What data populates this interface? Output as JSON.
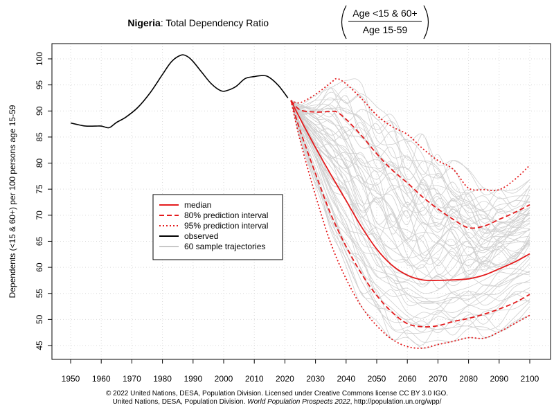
{
  "chart_data": {
    "type": "line",
    "title": {
      "country": "Nigeria",
      "text": ": Total Dependency Ratio",
      "fraction_numerator": "Age <15 & 60+",
      "fraction_denominator": "Age 15-59"
    },
    "ylabel": "Dependents (<15 & 60+) per 100 persons age 15-59",
    "xlabel": "",
    "xlim": [
      1950,
      2100
    ],
    "ylim": [
      44,
      102
    ],
    "x_ticks": [
      1950,
      1960,
      1970,
      1980,
      1990,
      2000,
      2010,
      2020,
      2030,
      2040,
      2050,
      2060,
      2070,
      2080,
      2090,
      2100
    ],
    "y_ticks": [
      45,
      50,
      55,
      60,
      65,
      70,
      75,
      80,
      85,
      90,
      95,
      100
    ],
    "grid": true,
    "legend_position": "center-left",
    "legend": [
      {
        "label": "median",
        "color": "#e41a1c",
        "style": "solid"
      },
      {
        "label": "80% prediction interval",
        "color": "#e41a1c",
        "style": "dashed"
      },
      {
        "label": "95% prediction interval",
        "color": "#e41a1c",
        "style": "dotted"
      },
      {
        "label": "observed",
        "color": "#000000",
        "style": "solid"
      },
      {
        "label": "60 sample trajectories",
        "color": "#c8c8c8",
        "style": "solid"
      }
    ],
    "series": [
      {
        "name": "observed",
        "color": "#000000",
        "style": "solid",
        "x": [
          1950,
          1953,
          1955,
          1958,
          1960,
          1962,
          1963,
          1965,
          1968,
          1972,
          1976,
          1980,
          1983,
          1986,
          1988,
          1990,
          1993,
          1996,
          1999,
          2001,
          2004,
          2007,
          2010,
          2013,
          2015,
          2018,
          2021
        ],
        "y": [
          87.7,
          87.3,
          87.1,
          87.1,
          87.1,
          86.8,
          86.9,
          87.8,
          88.8,
          90.7,
          93.5,
          97.0,
          99.5,
          100.7,
          100.5,
          99.5,
          97.3,
          95.2,
          93.9,
          93.9,
          94.7,
          96.2,
          96.6,
          96.8,
          96.4,
          94.8,
          92.5
        ]
      },
      {
        "name": "median",
        "color": "#e41a1c",
        "style": "solid",
        "x": [
          2022,
          2025,
          2030,
          2035,
          2040,
          2045,
          2050,
          2055,
          2060,
          2065,
          2070,
          2075,
          2080,
          2085,
          2090,
          2095,
          2100
        ],
        "y": [
          92,
          88.5,
          83,
          77.8,
          72.8,
          67.8,
          63.5,
          60.4,
          58.5,
          57.6,
          57.5,
          57.6,
          57.8,
          58.5,
          59.7,
          61,
          62.6
        ]
      },
      {
        "name": "80% upper",
        "color": "#e41a1c",
        "style": "dashed",
        "x": [
          2022,
          2025,
          2030,
          2035,
          2037,
          2040,
          2045,
          2050,
          2055,
          2060,
          2065,
          2070,
          2075,
          2080,
          2085,
          2090,
          2095,
          2100
        ],
        "y": [
          92,
          90.2,
          89.8,
          89.9,
          89.8,
          88.4,
          85.3,
          81.8,
          78.7,
          76.2,
          73.5,
          71.2,
          69.2,
          67.6,
          67.9,
          69.2,
          70.5,
          72
        ]
      },
      {
        "name": "80% lower",
        "color": "#e41a1c",
        "style": "dashed",
        "x": [
          2022,
          2025,
          2030,
          2035,
          2040,
          2045,
          2050,
          2055,
          2060,
          2065,
          2070,
          2075,
          2080,
          2085,
          2090,
          2095,
          2100
        ],
        "y": [
          92,
          86.2,
          78,
          70.2,
          64,
          58.8,
          54.6,
          51.4,
          49.2,
          48.6,
          48.8,
          49.6,
          50.2,
          51,
          52,
          53.2,
          54.8
        ]
      },
      {
        "name": "95% upper",
        "color": "#e41a1c",
        "style": "dotted",
        "x": [
          2022,
          2025,
          2030,
          2035,
          2037,
          2040,
          2045,
          2050,
          2055,
          2060,
          2065,
          2070,
          2075,
          2080,
          2085,
          2090,
          2095,
          2100
        ],
        "y": [
          92,
          91.6,
          93.2,
          95.4,
          96.2,
          95.2,
          92.4,
          89.2,
          87,
          85.5,
          82.8,
          80.5,
          78.8,
          75.2,
          74.9,
          74.9,
          76.8,
          79.6
        ]
      },
      {
        "name": "95% lower",
        "color": "#e41a1c",
        "style": "dotted",
        "x": [
          2022,
          2025,
          2030,
          2035,
          2040,
          2045,
          2050,
          2055,
          2060,
          2065,
          2070,
          2075,
          2080,
          2085,
          2090,
          2095,
          2100
        ],
        "y": [
          92,
          84.3,
          73.8,
          64.6,
          57.8,
          52.5,
          48.8,
          46.2,
          44.8,
          44.5,
          45.2,
          45.8,
          46.5,
          46.4,
          47.6,
          49.2,
          50.8
        ]
      }
    ],
    "sample_trajectories": {
      "count": 60,
      "color": "#cfcfcf",
      "start_x": 2022,
      "start_y": 92,
      "end_x": 2100
    }
  },
  "footer": {
    "line1": "© 2022 United Nations, DESA, Population Division. Licensed under Creative Commons license CC BY 3.0 IGO.",
    "line2_prefix": "United Nations, DESA, Population Division. ",
    "line2_italic": "World Population Prospects 2022",
    "line2_suffix": ", http://population.un.org/wpp/"
  }
}
